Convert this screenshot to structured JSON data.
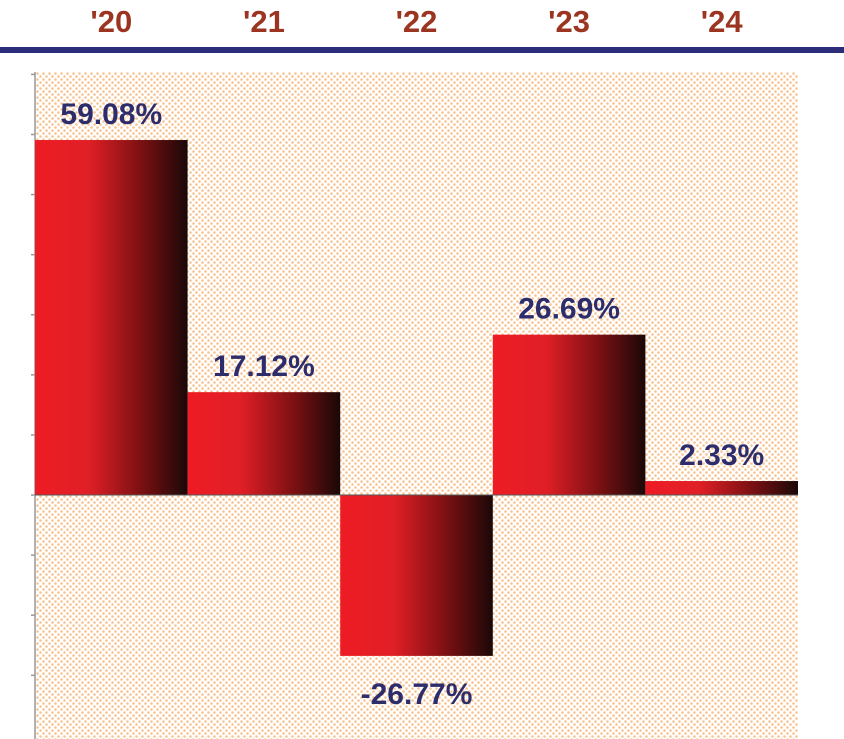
{
  "chart_data": {
    "type": "bar",
    "categories": [
      "'20",
      "'21",
      "'22",
      "'23",
      "'24"
    ],
    "values": [
      59.08,
      17.12,
      -26.77,
      26.69,
      2.33
    ],
    "value_labels": [
      "59.08%",
      "17.12%",
      "-26.77%",
      "26.69%",
      "2.33%"
    ],
    "color": "#ee1c24",
    "ylim": [
      -40.6,
      70.4
    ],
    "yticks": [
      -30,
      -20,
      -10,
      0,
      10,
      20,
      30,
      40,
      50,
      60,
      70
    ]
  }
}
